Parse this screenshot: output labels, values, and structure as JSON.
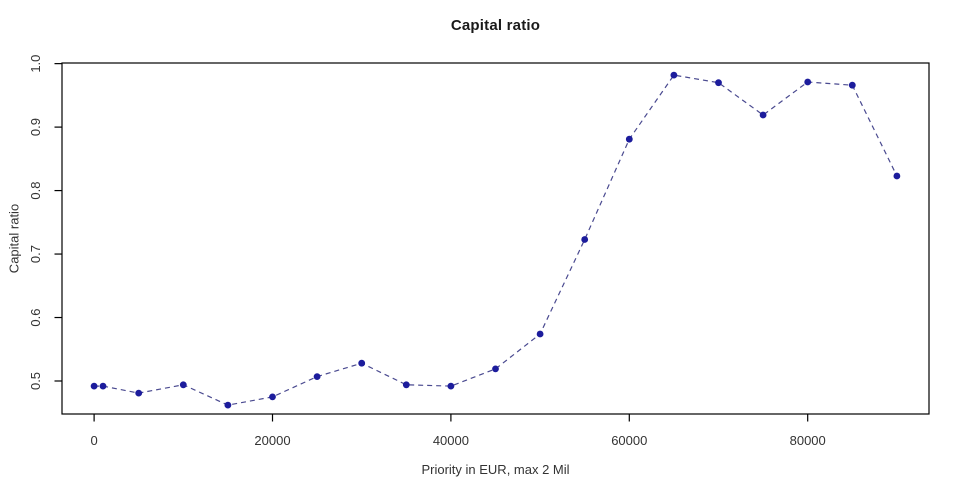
{
  "chart_data": {
    "type": "line",
    "title": "Capital ratio",
    "xlabel": "Priority in EUR, max 2 Mil",
    "ylabel": "Capital ratio",
    "x": [
      0,
      1000,
      5000,
      10000,
      15000,
      20000,
      25000,
      30000,
      35000,
      40000,
      45000,
      50000,
      55000,
      60000,
      65000,
      70000,
      75000,
      80000,
      85000,
      90000
    ],
    "y": [
      0.492,
      0.492,
      0.481,
      0.494,
      0.462,
      0.475,
      0.507,
      0.528,
      0.494,
      0.492,
      0.519,
      0.574,
      0.723,
      0.881,
      0.982,
      0.97,
      0.919,
      0.971,
      0.966,
      0.823
    ],
    "x_ticks": [
      {
        "v": 0,
        "label": "0"
      },
      {
        "v": 20000,
        "label": "20000"
      },
      {
        "v": 40000,
        "label": "40000"
      },
      {
        "v": 60000,
        "label": "60000"
      },
      {
        "v": 80000,
        "label": "80000"
      }
    ],
    "y_ticks": [
      {
        "v": 0.5,
        "label": "0.5"
      },
      {
        "v": 0.6,
        "label": "0.6"
      },
      {
        "v": 0.7,
        "label": "0.7"
      },
      {
        "v": 0.8,
        "label": "0.8"
      },
      {
        "v": 0.9,
        "label": "0.9"
      },
      {
        "v": 1.0,
        "label": "1.0"
      }
    ],
    "xlim": [
      -3600,
      93600
    ],
    "ylim": [
      0.448,
      1.001
    ],
    "grid": false,
    "legend_position": "none",
    "line_style": "dashed",
    "point_color": "#1c1c9c",
    "line_color": "#4a4a90",
    "axis_color": "#000000",
    "text_color": "#333333",
    "background_color": "#ffffff"
  }
}
